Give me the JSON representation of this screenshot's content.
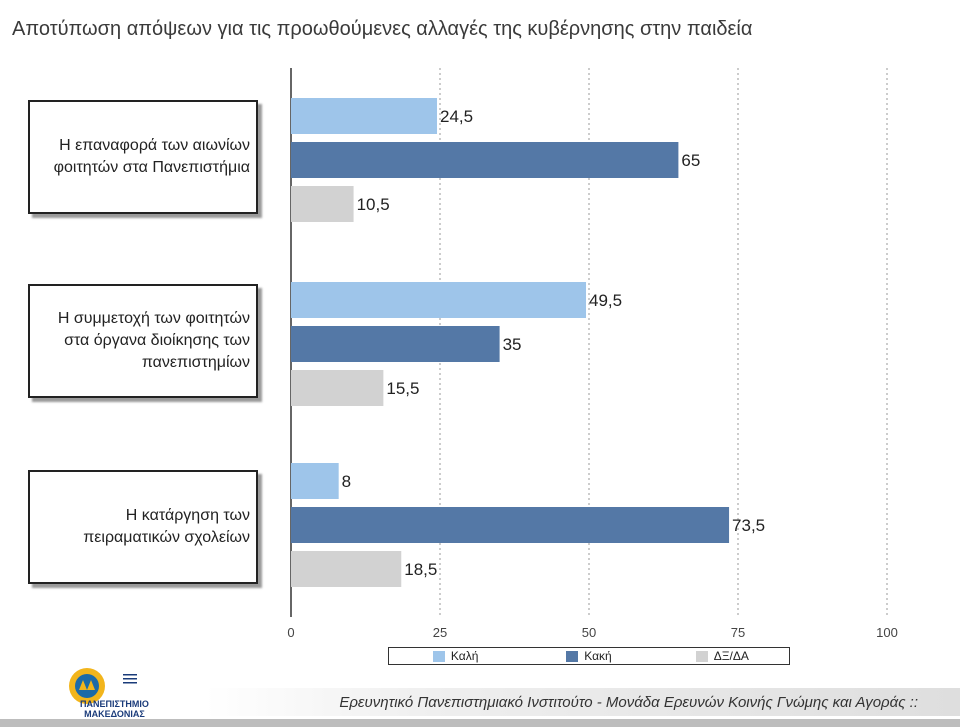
{
  "title": "Αποτύπωση απόψεων για τις προωθούμενες αλλαγές της κυβέρνησης στην παιδεία",
  "footer": {
    "text": "Ερευνητικό Πανεπιστημιακό Ινστιτούτο - Μονάδα Ερευνών Κοινής Γνώμης και Αγοράς ::",
    "logo_text": "ΠΑΝΕΠΙΣΤΗΜΙΟ\nΜΑΚΕΔΟΝΙΑΣ"
  },
  "chart_data": {
    "type": "bar",
    "orientation": "horizontal",
    "categories": [
      "Η επαναφορά των αιωνίων\nφοιτητών στα Πανεπιστήμια",
      "Η συμμετοχή των φοιτητών\nστα όργανα διοίκησης των\nπανεπιστημίων",
      "Η κατάργηση των\nπειραματικών σχολείων"
    ],
    "series": [
      {
        "name": "Καλή",
        "color": "#9ec5ea",
        "values": [
          24.5,
          49.5,
          8
        ],
        "labels": [
          "24,5",
          "49,5",
          "8"
        ]
      },
      {
        "name": "Κακή",
        "color": "#5478a6",
        "values": [
          65,
          35,
          73.5
        ],
        "labels": [
          "65",
          "35",
          "73,5"
        ]
      },
      {
        "name": "ΔΞ/ΔΑ",
        "color": "#d2d2d2",
        "values": [
          10.5,
          15.5,
          18.5
        ],
        "labels": [
          "10,5",
          "15,5",
          "18,5"
        ]
      }
    ],
    "xlim": [
      0,
      100
    ],
    "xticks": [
      "0",
      "25",
      "50",
      "75",
      "100"
    ],
    "grid": "vertical dashed",
    "legend_position": "bottom"
  }
}
